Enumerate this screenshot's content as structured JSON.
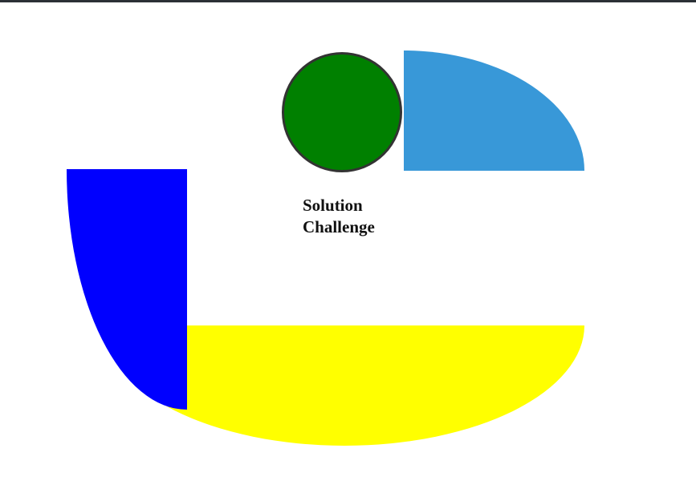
{
  "caption": {
    "line1": "Solution",
    "line2": "Challenge"
  },
  "colors": {
    "top_bar": "#2b3036",
    "green_circle": "#008000",
    "green_circle_border": "#333333",
    "light_blue_quarter": "#3898d8",
    "blue_quarter": "#0000ff",
    "yellow_half": "#ffff00"
  }
}
